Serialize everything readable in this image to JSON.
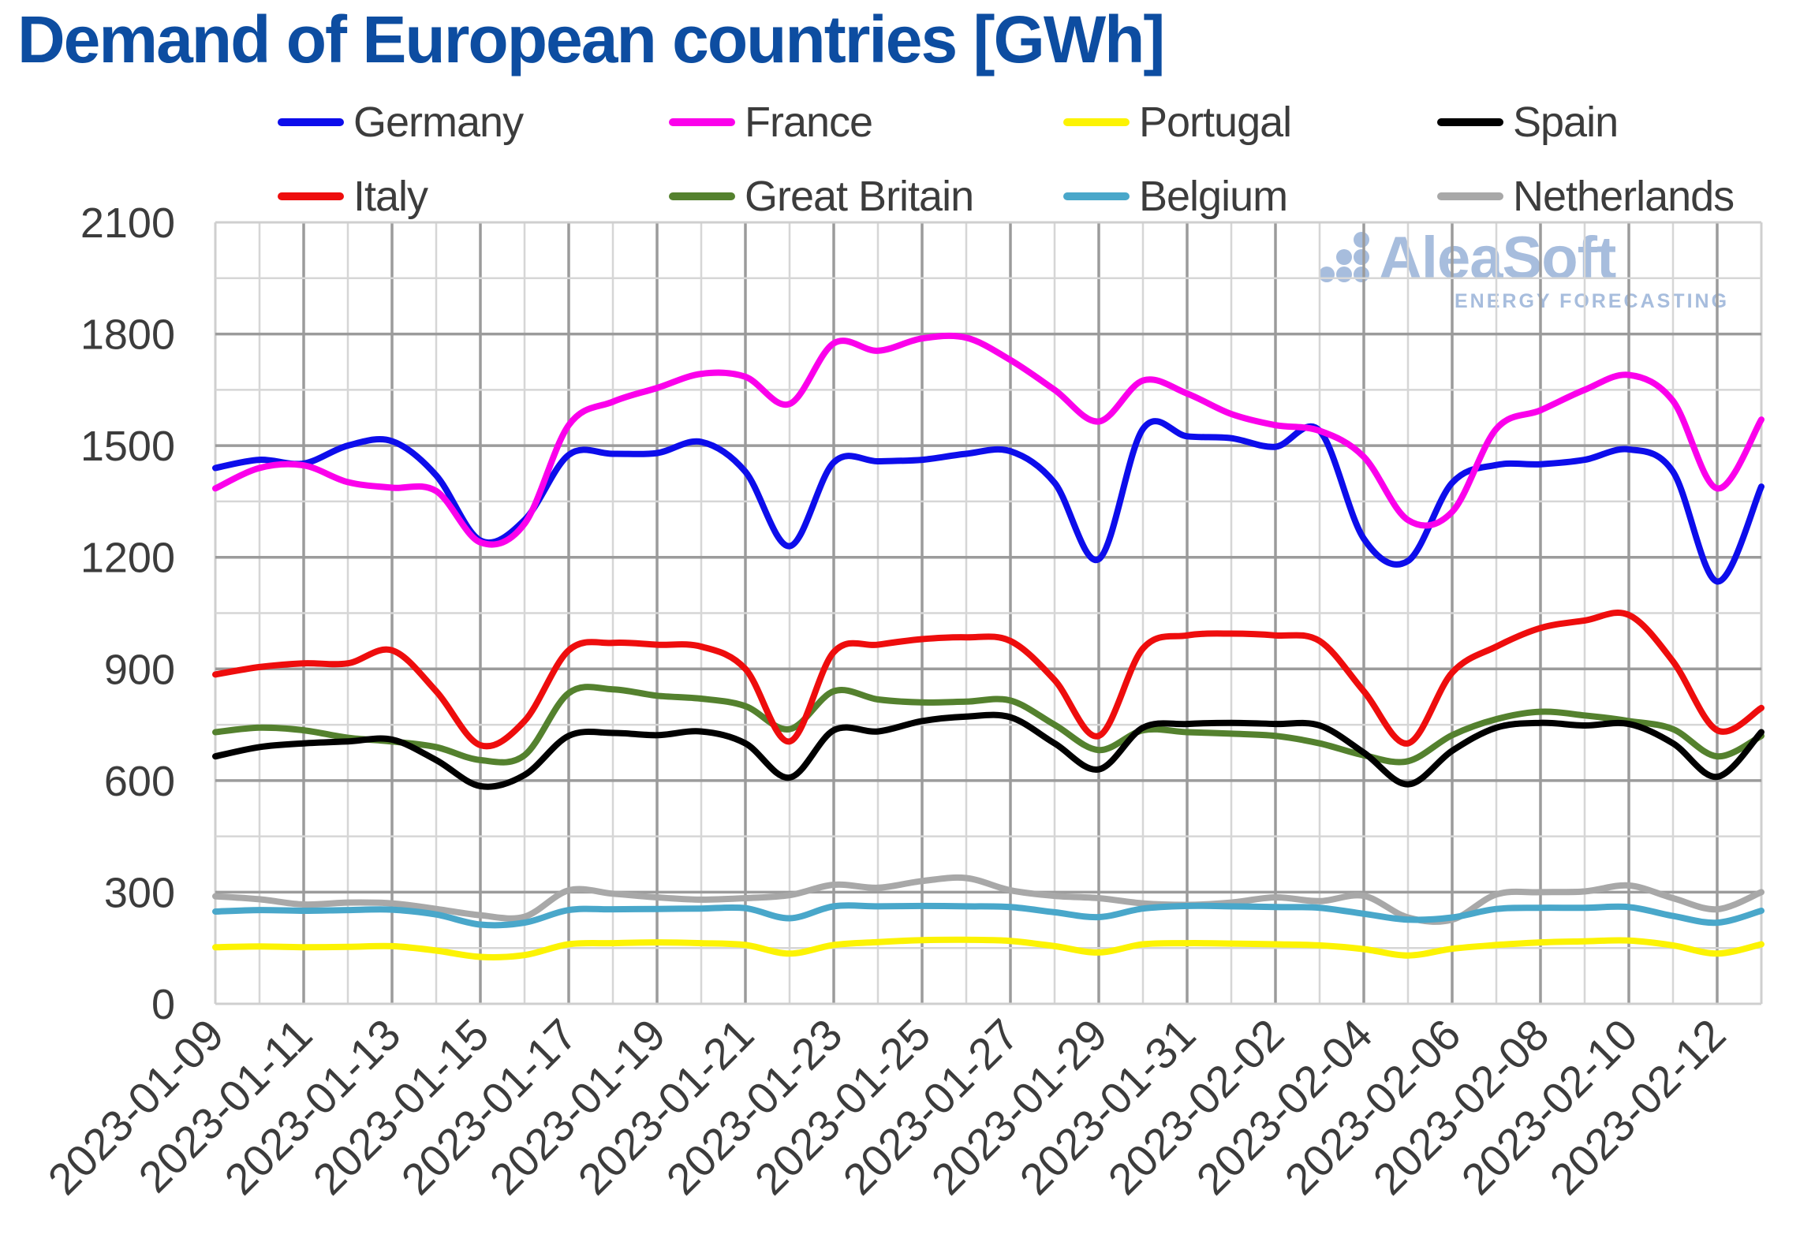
{
  "title": "Demand of European countries [GWh]",
  "watermark": {
    "brand": "AleaSoft",
    "tagline": "ENERGY FORECASTING"
  },
  "style": {
    "title_color": "#0d4da1",
    "tick_color": "#3c3c3c",
    "grid_minor": "#d6d6d6",
    "grid_major": "#9b9b9b",
    "plot_border": "#cfcfcf",
    "watermark_color": "#a7bddd"
  },
  "chart_data": {
    "type": "line",
    "title": "Demand of European countries [GWh]",
    "xlabel": "",
    "ylabel": "",
    "ylim": [
      0,
      2100
    ],
    "y_major_step": 300,
    "y_minor_step": 150,
    "grid": true,
    "legend_position": "top",
    "x": [
      "2023-01-09",
      "2023-01-10",
      "2023-01-11",
      "2023-01-12",
      "2023-01-13",
      "2023-01-14",
      "2023-01-15",
      "2023-01-16",
      "2023-01-17",
      "2023-01-18",
      "2023-01-19",
      "2023-01-20",
      "2023-01-21",
      "2023-01-22",
      "2023-01-23",
      "2023-01-24",
      "2023-01-25",
      "2023-01-26",
      "2023-01-27",
      "2023-01-28",
      "2023-01-29",
      "2023-01-30",
      "2023-01-31",
      "2023-02-01",
      "2023-02-02",
      "2023-02-03",
      "2023-02-04",
      "2023-02-05",
      "2023-02-06",
      "2023-02-07",
      "2023-02-08",
      "2023-02-09",
      "2023-02-10",
      "2023-02-11",
      "2023-02-12",
      "2023-02-13"
    ],
    "x_labeled_ticks": [
      "2023-01-09",
      "2023-01-11",
      "2023-01-13",
      "2023-01-15",
      "2023-01-17",
      "2023-01-19",
      "2023-01-21",
      "2023-01-23",
      "2023-01-25",
      "2023-01-27",
      "2023-01-29",
      "2023-01-31",
      "2023-02-02",
      "2023-02-04",
      "2023-02-06",
      "2023-02-08",
      "2023-02-10",
      "2023-02-12"
    ],
    "series": [
      {
        "name": "Germany",
        "color": "#0d0deb",
        "values": [
          1440,
          1462,
          1452,
          1500,
          1512,
          1420,
          1245,
          1300,
          1475,
          1478,
          1480,
          1510,
          1430,
          1230,
          1455,
          1458,
          1462,
          1478,
          1485,
          1400,
          1195,
          1545,
          1525,
          1520,
          1497,
          1540,
          1250,
          1190,
          1400,
          1448,
          1450,
          1462,
          1490,
          1430,
          1135,
          1390
        ]
      },
      {
        "name": "France",
        "color": "#fb00eb",
        "values": [
          1385,
          1440,
          1447,
          1402,
          1387,
          1378,
          1240,
          1290,
          1555,
          1618,
          1655,
          1693,
          1685,
          1612,
          1775,
          1755,
          1788,
          1790,
          1730,
          1650,
          1565,
          1675,
          1640,
          1585,
          1555,
          1540,
          1470,
          1300,
          1322,
          1545,
          1595,
          1650,
          1690,
          1620,
          1385,
          1570
        ]
      },
      {
        "name": "Portugal",
        "color": "#fcf303",
        "values": [
          152,
          154,
          152,
          153,
          155,
          143,
          126,
          131,
          160,
          163,
          165,
          163,
          158,
          135,
          158,
          166,
          171,
          172,
          169,
          155,
          138,
          160,
          163,
          162,
          160,
          157,
          147,
          130,
          148,
          158,
          165,
          168,
          170,
          157,
          135,
          160
        ]
      },
      {
        "name": "Spain",
        "color": "#000000",
        "values": [
          665,
          690,
          700,
          705,
          710,
          655,
          585,
          615,
          720,
          728,
          722,
          732,
          700,
          608,
          735,
          732,
          760,
          772,
          770,
          700,
          630,
          742,
          752,
          755,
          752,
          748,
          675,
          590,
          680,
          742,
          755,
          748,
          752,
          700,
          610,
          730
        ]
      },
      {
        "name": "Italy",
        "color": "#ee0d0d",
        "values": [
          885,
          905,
          915,
          915,
          950,
          840,
          695,
          760,
          950,
          970,
          965,
          960,
          900,
          705,
          945,
          965,
          980,
          985,
          975,
          870,
          720,
          955,
          990,
          995,
          990,
          975,
          840,
          700,
          890,
          960,
          1010,
          1030,
          1045,
          920,
          735,
          795
        ]
      },
      {
        "name": "Great Britain",
        "color": "#54812e",
        "values": [
          730,
          742,
          735,
          715,
          705,
          690,
          655,
          668,
          835,
          845,
          828,
          820,
          800,
          738,
          840,
          818,
          810,
          812,
          815,
          750,
          682,
          735,
          730,
          726,
          720,
          700,
          668,
          652,
          722,
          765,
          785,
          775,
          760,
          738,
          665,
          720
        ]
      },
      {
        "name": "Belgium",
        "color": "#49a7ca",
        "values": [
          248,
          252,
          250,
          252,
          253,
          240,
          213,
          218,
          252,
          254,
          255,
          256,
          257,
          230,
          262,
          262,
          263,
          262,
          260,
          246,
          233,
          256,
          263,
          262,
          260,
          258,
          242,
          226,
          232,
          255,
          258,
          258,
          260,
          236,
          218,
          250
        ]
      },
      {
        "name": "Netherlands",
        "color": "#a8a8a8",
        "values": [
          289,
          281,
          267,
          272,
          270,
          255,
          238,
          234,
          305,
          296,
          286,
          280,
          284,
          292,
          320,
          312,
          330,
          338,
          305,
          290,
          284,
          270,
          266,
          272,
          286,
          276,
          290,
          232,
          226,
          294,
          300,
          302,
          318,
          284,
          254,
          300
        ]
      }
    ],
    "draw_order": [
      7,
      6,
      2,
      5,
      3,
      4,
      0,
      1
    ]
  }
}
